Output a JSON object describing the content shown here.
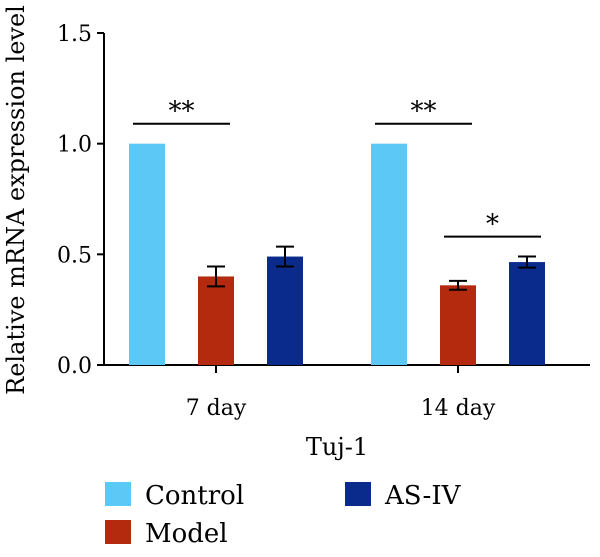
{
  "chart_data": {
    "type": "bar",
    "title": "",
    "xlabel": "Tuj-1",
    "ylabel": "Relative mRNA expression level",
    "categories": [
      "7 day",
      "14 day"
    ],
    "ylim": [
      0,
      1.5
    ],
    "yticks": [
      "0.0",
      "0.5",
      "1.0",
      "1.5"
    ],
    "series": [
      {
        "name": "Control",
        "color": "#5bc8f5",
        "values": [
          1.0,
          1.0
        ],
        "errors": [
          0,
          0
        ]
      },
      {
        "name": "Model",
        "color": "#b32a0e",
        "values": [
          0.4,
          0.36
        ],
        "errors": [
          0.045,
          0.02
        ]
      },
      {
        "name": "AS-IV",
        "color": "#0a2a8c",
        "values": [
          0.49,
          0.465
        ],
        "errors": [
          0.045,
          0.025
        ]
      }
    ],
    "legend_position": "bottom",
    "significance": [
      {
        "category": 0,
        "from_series": 0,
        "to_series": 1,
        "label": "**",
        "y": 1.09
      },
      {
        "category": 1,
        "from_series": 0,
        "to_series": 1,
        "label": "**",
        "y": 1.09
      },
      {
        "category": 1,
        "from_series": 1,
        "to_series": 2,
        "label": "*",
        "y": 0.58
      }
    ]
  }
}
